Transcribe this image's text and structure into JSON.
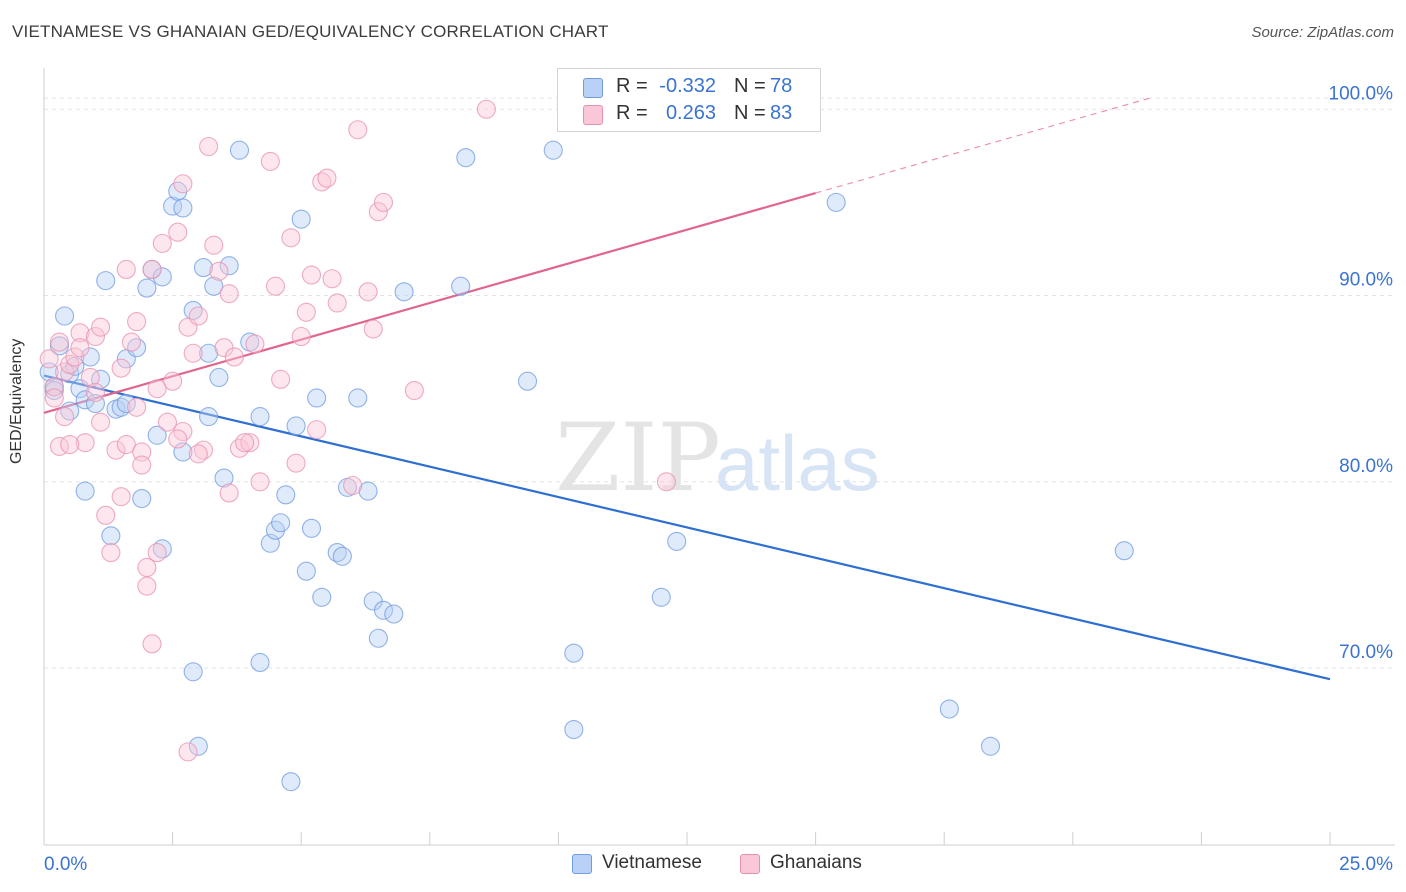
{
  "title": "VIETNAMESE VS GHANAIAN GED/EQUIVALENCY CORRELATION CHART",
  "source": "Source: ZipAtlas.com",
  "watermark": {
    "zip": "ZIP",
    "atlas": "atlas"
  },
  "legend": {
    "rows": [
      {
        "r_label": "R =",
        "r_value": "-0.332",
        "n_label": "N =",
        "n_value": "78",
        "color": "#6f9be0"
      },
      {
        "r_label": "R =",
        "r_value": "0.263",
        "n_label": "N =",
        "n_value": "83",
        "color": "#e890b0"
      }
    ]
  },
  "bottom_legend": [
    "Vietnamese",
    "Ghanaians"
  ],
  "chart_data": {
    "type": "scatter",
    "title": "VIETNAMESE VS GHANAIAN GED/EQUIVALENCY CORRELATION CHART",
    "xlabel": "",
    "ylabel": "GED/Equivalency",
    "xlim": [
      0,
      25
    ],
    "ylim": [
      60.5,
      102
    ],
    "x_tick_labels": [
      "0.0%",
      "25.0%"
    ],
    "y_ticks": [
      70,
      80,
      90,
      100
    ],
    "y_tick_labels": [
      "70.0%",
      "80.0%",
      "90.0%",
      "100.0%"
    ],
    "grid": true,
    "legend_position": "top-center",
    "series": [
      {
        "name": "Vietnamese",
        "color": "#6f9be0",
        "trend": {
          "x": [
            0,
            25
          ],
          "y": [
            85.7,
            69.4
          ],
          "style": "solid"
        },
        "points": [
          [
            0.2,
            85.1
          ],
          [
            0.2,
            84.9
          ],
          [
            0.4,
            88.9
          ],
          [
            0.3,
            87.3
          ],
          [
            0.5,
            85.8
          ],
          [
            0.6,
            86.2
          ],
          [
            0.7,
            85.0
          ],
          [
            0.8,
            84.4
          ],
          [
            0.9,
            86.7
          ],
          [
            1.1,
            85.5
          ],
          [
            1.2,
            90.8
          ],
          [
            1.4,
            83.9
          ],
          [
            1.5,
            84.0
          ],
          [
            1.6,
            86.6
          ],
          [
            1.6,
            84.2
          ],
          [
            1.8,
            87.2
          ],
          [
            2.0,
            90.4
          ],
          [
            2.1,
            91.4
          ],
          [
            2.2,
            82.5
          ],
          [
            2.3,
            91.0
          ],
          [
            2.5,
            94.8
          ],
          [
            2.6,
            95.6
          ],
          [
            2.7,
            94.7
          ],
          [
            2.9,
            89.2
          ],
          [
            3.1,
            91.5
          ],
          [
            3.2,
            86.9
          ],
          [
            3.3,
            90.5
          ],
          [
            3.4,
            85.6
          ],
          [
            3.6,
            91.6
          ],
          [
            3.8,
            97.8
          ],
          [
            4.0,
            87.5
          ],
          [
            4.2,
            83.5
          ],
          [
            4.4,
            76.7
          ],
          [
            4.5,
            77.4
          ],
          [
            4.6,
            77.8
          ],
          [
            4.7,
            79.3
          ],
          [
            4.8,
            63.9
          ],
          [
            4.9,
            83.0
          ],
          [
            5.0,
            94.1
          ],
          [
            5.1,
            75.2
          ],
          [
            5.2,
            77.5
          ],
          [
            5.3,
            84.5
          ],
          [
            5.4,
            73.8
          ],
          [
            5.7,
            76.2
          ],
          [
            5.8,
            76.0
          ],
          [
            5.9,
            79.7
          ],
          [
            6.1,
            84.5
          ],
          [
            6.3,
            79.5
          ],
          [
            6.4,
            73.6
          ],
          [
            6.5,
            71.6
          ],
          [
            6.6,
            73.1
          ],
          [
            6.8,
            72.9
          ],
          [
            7.0,
            90.2
          ],
          [
            8.1,
            90.5
          ],
          [
            8.2,
            97.4
          ],
          [
            9.4,
            85.4
          ],
          [
            9.9,
            97.8
          ],
          [
            10.3,
            66.7
          ],
          [
            10.3,
            70.8
          ],
          [
            12.0,
            73.8
          ],
          [
            12.3,
            76.8
          ],
          [
            15.4,
            95.0
          ],
          [
            17.6,
            67.8
          ],
          [
            18.4,
            65.8
          ],
          [
            21.0,
            76.3
          ],
          [
            0.8,
            79.5
          ],
          [
            1.3,
            77.1
          ],
          [
            1.9,
            79.1
          ],
          [
            2.3,
            76.4
          ],
          [
            2.7,
            81.6
          ],
          [
            2.9,
            69.8
          ],
          [
            3.0,
            65.8
          ],
          [
            3.5,
            80.2
          ],
          [
            4.2,
            70.3
          ],
          [
            3.2,
            83.5
          ],
          [
            0.5,
            83.8
          ],
          [
            1.0,
            84.2
          ],
          [
            0.1,
            85.9
          ]
        ]
      },
      {
        "name": "Ghanaians",
        "color": "#e890b0",
        "trend": {
          "x": [
            0,
            15
          ],
          "y": [
            83.7,
            95.5
          ],
          "style": "solid",
          "extended_x": [
            15,
            21.5
          ],
          "extended_y": [
            95.5,
            100.6
          ],
          "extended_style": "dashed"
        },
        "points": [
          [
            0.1,
            86.6
          ],
          [
            0.2,
            85.1
          ],
          [
            0.3,
            87.5
          ],
          [
            0.3,
            81.9
          ],
          [
            0.4,
            85.9
          ],
          [
            0.5,
            86.3
          ],
          [
            0.6,
            86.7
          ],
          [
            0.7,
            88.0
          ],
          [
            0.7,
            87.2
          ],
          [
            0.8,
            82.1
          ],
          [
            0.9,
            85.6
          ],
          [
            1.0,
            87.8
          ],
          [
            1.1,
            83.2
          ],
          [
            1.1,
            88.3
          ],
          [
            1.2,
            78.2
          ],
          [
            1.3,
            76.2
          ],
          [
            1.4,
            81.7
          ],
          [
            1.5,
            79.2
          ],
          [
            1.6,
            82.0
          ],
          [
            1.6,
            91.4
          ],
          [
            1.7,
            87.5
          ],
          [
            1.8,
            84.0
          ],
          [
            1.9,
            81.6
          ],
          [
            1.9,
            80.9
          ],
          [
            2.0,
            75.4
          ],
          [
            2.0,
            74.4
          ],
          [
            2.1,
            71.3
          ],
          [
            2.1,
            91.4
          ],
          [
            2.2,
            76.2
          ],
          [
            2.3,
            92.8
          ],
          [
            2.4,
            83.2
          ],
          [
            2.5,
            85.4
          ],
          [
            2.6,
            93.4
          ],
          [
            2.7,
            82.7
          ],
          [
            2.8,
            88.3
          ],
          [
            2.9,
            86.9
          ],
          [
            3.0,
            88.9
          ],
          [
            3.1,
            81.7
          ],
          [
            3.2,
            98.0
          ],
          [
            3.3,
            92.7
          ],
          [
            3.4,
            91.3
          ],
          [
            3.5,
            87.2
          ],
          [
            3.6,
            90.1
          ],
          [
            3.6,
            79.4
          ],
          [
            3.7,
            86.7
          ],
          [
            3.8,
            81.8
          ],
          [
            4.0,
            82.1
          ],
          [
            4.1,
            87.4
          ],
          [
            4.2,
            80.0
          ],
          [
            4.4,
            97.2
          ],
          [
            4.5,
            90.5
          ],
          [
            4.6,
            85.5
          ],
          [
            4.8,
            93.1
          ],
          [
            4.9,
            81.0
          ],
          [
            5.0,
            87.8
          ],
          [
            5.1,
            89.1
          ],
          [
            5.2,
            91.1
          ],
          [
            5.3,
            82.8
          ],
          [
            5.4,
            96.1
          ],
          [
            5.5,
            96.3
          ],
          [
            5.6,
            90.9
          ],
          [
            5.7,
            89.6
          ],
          [
            6.0,
            79.8
          ],
          [
            6.1,
            98.9
          ],
          [
            6.3,
            90.2
          ],
          [
            6.4,
            88.2
          ],
          [
            6.5,
            94.5
          ],
          [
            6.6,
            95.0
          ],
          [
            7.2,
            84.9
          ],
          [
            8.6,
            100.0
          ],
          [
            12.1,
            80.0
          ],
          [
            0.2,
            84.5
          ],
          [
            0.4,
            83.5
          ],
          [
            1.5,
            86.1
          ],
          [
            2.2,
            85.0
          ],
          [
            2.7,
            96.0
          ],
          [
            3.9,
            82.1
          ],
          [
            1.0,
            84.8
          ],
          [
            0.5,
            82.0
          ],
          [
            1.8,
            88.6
          ],
          [
            2.6,
            82.3
          ],
          [
            3.0,
            81.5
          ],
          [
            2.8,
            65.5
          ]
        ]
      }
    ]
  }
}
